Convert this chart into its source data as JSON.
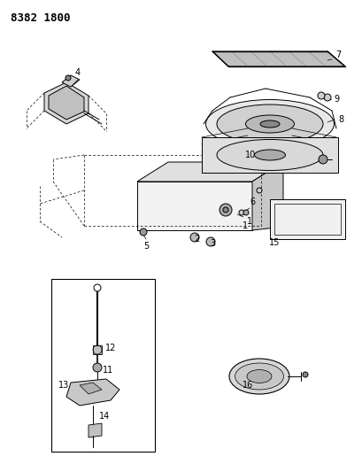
{
  "title": "8382 1800",
  "bg_color": "#ffffff",
  "line_color": "#000000",
  "title_fontsize": 9,
  "label_fontsize": 7,
  "fig_width": 4.1,
  "fig_height": 5.33,
  "dpi": 100
}
